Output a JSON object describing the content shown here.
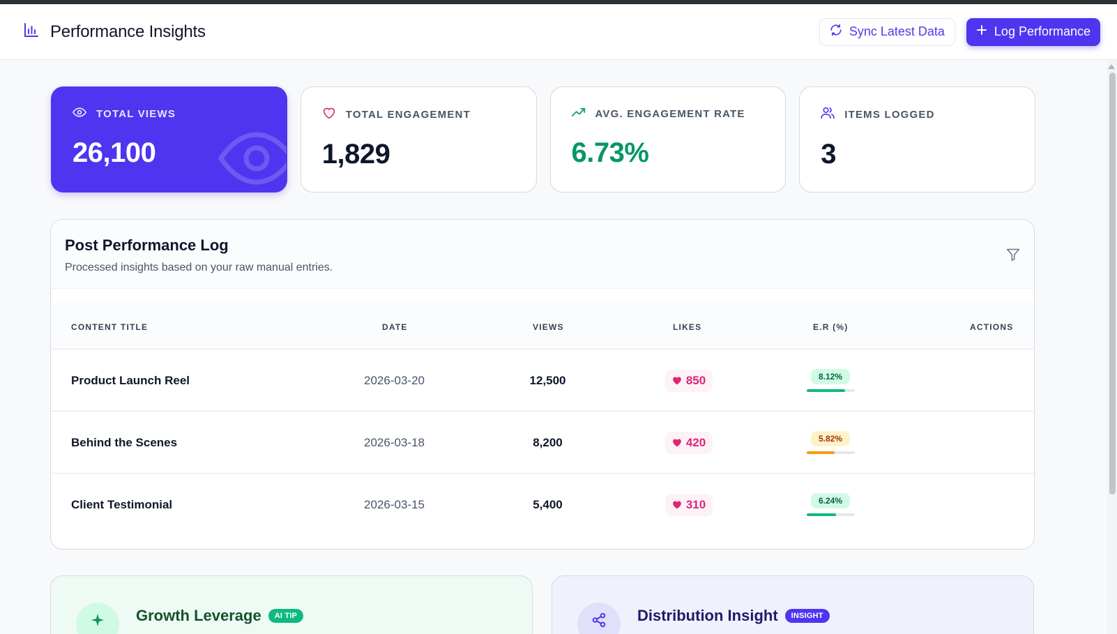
{
  "header": {
    "title": "Performance Insights",
    "sync_label": "Sync Latest Data",
    "log_label": "Log Performance"
  },
  "stats": [
    {
      "label": "TOTAL VIEWS",
      "value": "26,100",
      "icon": "eye-icon"
    },
    {
      "label": "TOTAL ENGAGEMENT",
      "value": "1,829",
      "icon": "heart-icon"
    },
    {
      "label": "AVG. ENGAGEMENT RATE",
      "value": "6.73%",
      "icon": "trending-up-icon"
    },
    {
      "label": "ITEMS LOGGED",
      "value": "3",
      "icon": "users-icon"
    }
  ],
  "log": {
    "title": "Post Performance Log",
    "subtitle": "Processed insights based on your raw manual entries.",
    "columns": [
      "CONTENT TITLE",
      "DATE",
      "VIEWS",
      "LIKES",
      "E.R (%)",
      "ACTIONS"
    ],
    "rows": [
      {
        "title": "Product Launch Reel",
        "date": "2026-03-20",
        "views": "12,500",
        "likes": "850",
        "er": "8.12%",
        "er_level": "good",
        "er_progress": 0.81
      },
      {
        "title": "Behind the Scenes",
        "date": "2026-03-18",
        "views": "8,200",
        "likes": "420",
        "er": "5.82%",
        "er_level": "mid",
        "er_progress": 0.58
      },
      {
        "title": "Client Testimonial",
        "date": "2026-03-15",
        "views": "5,400",
        "likes": "310",
        "er": "6.24%",
        "er_level": "good",
        "er_progress": 0.62
      }
    ]
  },
  "insights": [
    {
      "title": "Growth Leverage",
      "tag": "AI TIP",
      "icon": "sparkle-icon"
    },
    {
      "title": "Distribution Insight",
      "tag": "INSIGHT",
      "icon": "share-icon"
    }
  ],
  "colors": {
    "accent": "#4f35f0",
    "positive": "#059669",
    "warning": "#f59e0b",
    "like": "#db2777"
  }
}
